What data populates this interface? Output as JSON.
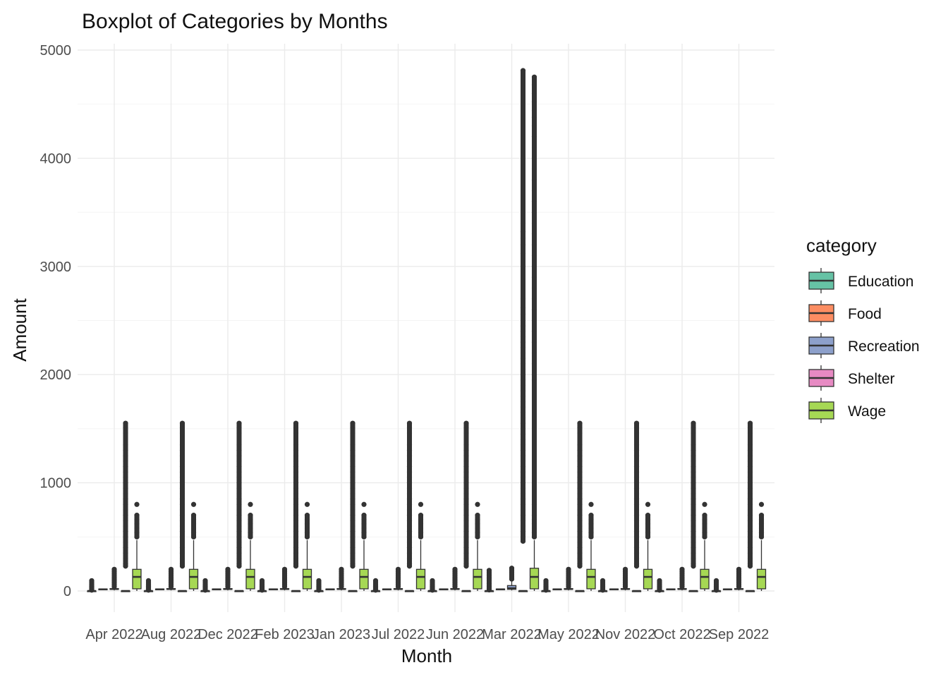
{
  "chart_data": {
    "type": "boxplot",
    "title": "Boxplot of Categories by Months",
    "xlabel": "Month",
    "ylabel": "Amount",
    "ylim": [
      -200,
      5100
    ],
    "yticks": [
      0,
      1000,
      2000,
      3000,
      4000,
      5000
    ],
    "grid": true,
    "legend": {
      "title": "category",
      "placement": "right"
    },
    "categories": [
      "Apr 2022",
      "Aug 2022",
      "Dec 2022",
      "Feb 2023",
      "Jan 2023",
      "Jul 2022",
      "Jun 2022",
      "Mar 2022",
      "May 2022",
      "Nov 2022",
      "Oct 2022",
      "Sep 2022"
    ],
    "series": [
      {
        "name": "Education",
        "color": "#66c2a5",
        "normal": {
          "min": 0,
          "q1": 0,
          "median": 0,
          "q3": 0,
          "max": 0,
          "outliers": [
            8,
            15,
            25,
            35,
            45,
            55,
            65,
            75,
            85,
            95
          ]
        },
        "Mar 2022": {
          "min": 0,
          "q1": 0,
          "median": 0,
          "q3": 0,
          "max": 0,
          "outliers": [
            10,
            25,
            45,
            70,
            95,
            120,
            145,
            170,
            190
          ]
        }
      },
      {
        "name": "Food",
        "color": "#fc8d62",
        "normal": {
          "min": 10,
          "q1": 12,
          "median": 15,
          "q3": 18,
          "max": 20,
          "outliers": []
        },
        "Mar 2022": {
          "min": 10,
          "q1": 12,
          "median": 15,
          "q3": 18,
          "max": 20,
          "outliers": []
        }
      },
      {
        "name": "Recreation",
        "color": "#8da0cb",
        "normal": {
          "min": 5,
          "q1": 15,
          "median": 18,
          "q3": 22,
          "max": 30,
          "outliers": [
            40,
            60,
            80,
            100,
            120,
            140,
            160,
            180,
            200
          ]
        },
        "Mar 2022": {
          "min": 5,
          "q1": 15,
          "median": 25,
          "q3": 50,
          "max": 90,
          "outliers": [
            110,
            130,
            150,
            170,
            190,
            210
          ]
        }
      },
      {
        "name": "Shelter",
        "color": "#e78ac3",
        "normal": {
          "min": 0,
          "q1": 0,
          "median": 0,
          "q3": 0,
          "max": 0,
          "outliers": [
            230,
            250,
            300,
            350,
            400,
            450,
            500,
            550,
            600,
            650,
            700,
            750,
            800,
            850,
            900,
            950,
            1000,
            1050,
            1100,
            1150,
            1200,
            1250,
            1300,
            1350,
            1460,
            1510,
            1550
          ]
        },
        "Mar 2022": {
          "min": 0,
          "q1": 0,
          "median": 0,
          "q3": 0,
          "max": 0,
          "outliers": [
            460,
            500,
            550,
            600,
            650,
            700,
            750,
            800,
            850,
            900,
            950,
            1000,
            1050,
            1100,
            1150,
            1200,
            1250,
            1300,
            1350,
            1400,
            1450,
            1500,
            1550,
            1600,
            1650,
            1700,
            1750,
            1800,
            1850,
            1900,
            1950,
            2000,
            2050,
            2100,
            2150,
            2200,
            2250,
            2300,
            2350,
            2400,
            2450,
            2500,
            2560,
            2620,
            2700,
            3000,
            3120,
            3200,
            3260,
            3320,
            3400,
            4810
          ]
        }
      },
      {
        "name": "Wage",
        "color": "#a6d854",
        "normal": {
          "min": 0,
          "q1": 20,
          "median": 130,
          "q3": 200,
          "max": 470,
          "outliers": [
            500,
            540,
            580,
            620,
            660,
            700,
            800
          ]
        },
        "Mar 2022": {
          "min": 0,
          "q1": 20,
          "median": 130,
          "q3": 210,
          "max": 470,
          "outliers": [
            500,
            540,
            580,
            620,
            660,
            700,
            800,
            1950,
            2000,
            2100,
            2200,
            2300,
            2400,
            2500,
            2600,
            2700,
            2800,
            2900,
            3000,
            3100,
            3200,
            3300,
            3400,
            3500,
            3600,
            3700,
            3800,
            3900,
            4000,
            4100,
            4200,
            4300,
            4380,
            4440,
            4520,
            4600,
            4680,
            4750
          ]
        }
      }
    ]
  }
}
